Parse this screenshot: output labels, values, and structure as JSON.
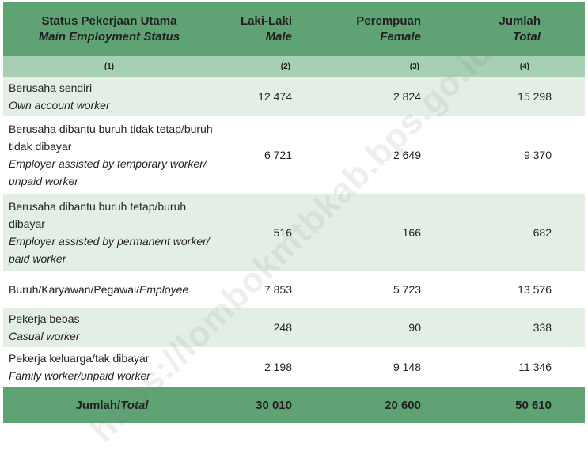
{
  "header": {
    "col1_id": "Status Pekerjaan Utama",
    "col1_en": "Main Employment Status",
    "col2_id": "Laki-Laki",
    "col2_en": "Male",
    "col3_id": "Perempuan",
    "col3_en": "Female",
    "col4_id": "Jumlah",
    "col4_en": "Total"
  },
  "col_numbers": [
    "(1)",
    "(2)",
    "(3)",
    "(4)"
  ],
  "rows": [
    {
      "id1": "Berusaha sendiri",
      "id2": "",
      "en1": "Own account worker",
      "en2": "",
      "male": "12 474",
      "female": "2 824",
      "total": "15 298"
    },
    {
      "id1": "Berusaha dibantu buruh tidak tetap/buruh",
      "id2": "tidak dibayar",
      "en1": "Employer assisted by temporary worker/",
      "en2": "unpaid worker",
      "male": "6 721",
      "female": "2 649",
      "total": "9 370"
    },
    {
      "id1": "Berusaha dibantu buruh tetap/buruh",
      "id2": "dibayar",
      "en1": "Employer assisted by permanent worker/",
      "en2": "paid worker",
      "male": "516",
      "female": "166",
      "total": "682"
    },
    {
      "id1": "Buruh/Karyawan/Pegawai/",
      "en_inline": "Employee",
      "male": "7 853",
      "female": "5 723",
      "total": "13 576"
    },
    {
      "id1": "Pekerja bebas",
      "id2": "",
      "en1": "Casual worker",
      "en2": "",
      "male": "248",
      "female": "90",
      "total": "338"
    },
    {
      "id1": "Pekerja keluarga/tak dibayar",
      "id2": "",
      "en1": "Family worker/unpaid worker",
      "en2": "",
      "male": "2 198",
      "female": "9 148",
      "total": "11 346"
    }
  ],
  "total": {
    "label_id": "Jumlah/",
    "label_en": "Total",
    "male": "30 010",
    "female": "20 600",
    "total": "50 610"
  },
  "watermark": "https://lombokmtbkab.bps.go.id"
}
